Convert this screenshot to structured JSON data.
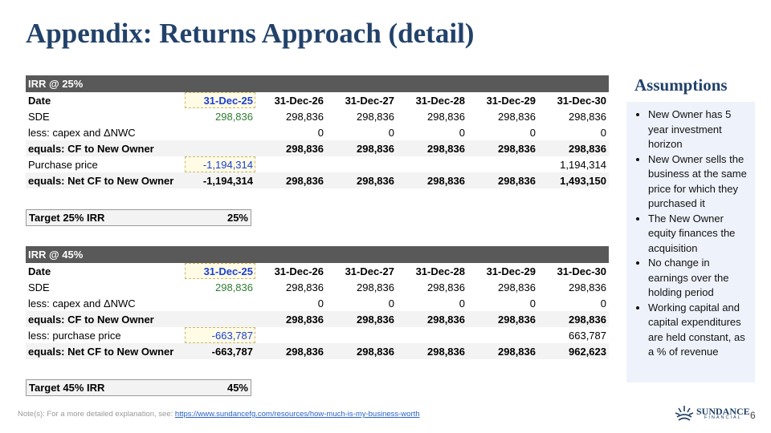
{
  "title": "Appendix: Returns Approach (detail)",
  "tables": [
    {
      "header": "IRR @ 25%",
      "rows": [
        [
          "Date",
          "31-Dec-25",
          "31-Dec-26",
          "31-Dec-27",
          "31-Dec-28",
          "31-Dec-29",
          "31-Dec-30"
        ],
        [
          "SDE",
          "298,836",
          "298,836",
          "298,836",
          "298,836",
          "298,836",
          "298,836"
        ],
        [
          "less: capex and ΔNWC",
          null,
          "0",
          "0",
          "0",
          "0",
          "0"
        ],
        [
          "equals: CF to New Owner",
          null,
          "298,836",
          "298,836",
          "298,836",
          "298,836",
          "298,836"
        ],
        [
          "Purchase price",
          "-1,194,314",
          null,
          null,
          null,
          null,
          "1,194,314"
        ],
        [
          "equals: Net CF to New Owner",
          "-1,194,314",
          "298,836",
          "298,836",
          "298,836",
          "298,836",
          "1,493,150"
        ]
      ],
      "target": {
        "label": "Target 25% IRR",
        "value": "25%"
      }
    },
    {
      "header": "IRR @ 45%",
      "rows": [
        [
          "Date",
          "31-Dec-25",
          "31-Dec-26",
          "31-Dec-27",
          "31-Dec-28",
          "31-Dec-29",
          "31-Dec-30"
        ],
        [
          "SDE",
          "298,836",
          "298,836",
          "298,836",
          "298,836",
          "298,836",
          "298,836"
        ],
        [
          "less: capex and ΔNWC",
          null,
          "0",
          "0",
          "0",
          "0",
          "0"
        ],
        [
          "equals: CF to New Owner",
          null,
          "298,836",
          "298,836",
          "298,836",
          "298,836",
          "298,836"
        ],
        [
          "less: purchase price",
          "-663,787",
          null,
          null,
          null,
          null,
          "663,787"
        ],
        [
          "equals: Net CF to New Owner",
          "-663,787",
          "298,836",
          "298,836",
          "298,836",
          "298,836",
          "962,623"
        ]
      ],
      "target": {
        "label": "Target 45% IRR",
        "value": "45%"
      }
    }
  ],
  "assumptions": {
    "title": "Assumptions",
    "items": [
      "New Owner has 5 year investment horizon",
      "New Owner sells the business at the same price for which they purchased it",
      "The New Owner equity finances the acquisition",
      "No change in earnings over the holding period",
      "Working capital and capital expenditures are held constant, as a % of revenue"
    ]
  },
  "footnote": {
    "text": "Note(s): For a more detailed explanation, see:",
    "link": "https://www.sundancefg.com/resources/how-much-is-my-business-worth"
  },
  "logo": {
    "name": "SUNDANCE",
    "sub": "FINANCIAL"
  },
  "page_number": 6
}
